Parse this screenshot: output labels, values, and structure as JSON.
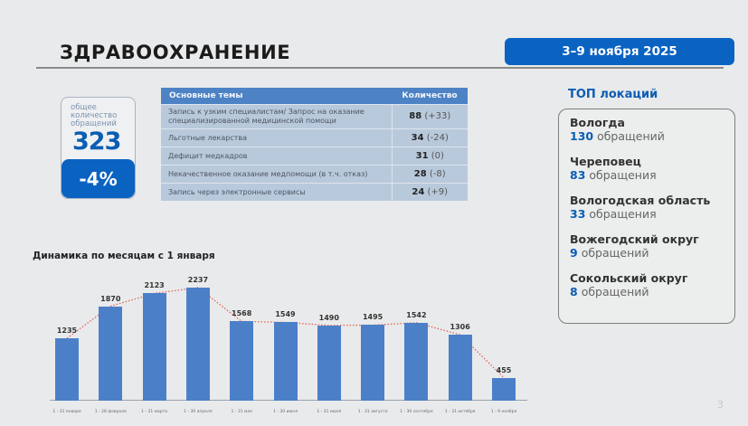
{
  "header": {
    "title": "ЗДРАВООХРАНЕНИЕ",
    "period": "3–9 ноября 2025"
  },
  "total": {
    "label_lines": [
      "общее",
      "количество",
      "обращений"
    ],
    "value": "323",
    "change": "-4%"
  },
  "topics_table": {
    "headers": [
      "Основные темы",
      "Количество"
    ],
    "rows": [
      {
        "topic_line1": "Запись к узким специалистам/ Запрос на оказание",
        "topic_line2": "специализированной медицинской помощи",
        "count": "88",
        "delta": "(+33)"
      },
      {
        "topic_line1": "Льготные лекарства",
        "topic_line2": "",
        "count": "34",
        "delta": "(-24)"
      },
      {
        "topic_line1": "Дефицит медкадров",
        "topic_line2": "",
        "count": "31",
        "delta": "(0)"
      },
      {
        "topic_line1": "Некачественное оказание медпомощи (в т.ч. отказ)",
        "topic_line2": "",
        "count": "28",
        "delta": "(-8)"
      },
      {
        "topic_line1": "Запись через электронные сервисы",
        "topic_line2": "",
        "count": "24",
        "delta": "(+9)"
      }
    ]
  },
  "top_locations": {
    "title": "ТОП локаций",
    "items": [
      {
        "name": "Вологда",
        "count": "130",
        "unit": "обращений"
      },
      {
        "name": "Череповец",
        "count": "83",
        "unit": "обращения"
      },
      {
        "name": "Вологодская область",
        "count": "33",
        "unit": "обращения"
      },
      {
        "name": "Вожегодский округ",
        "count": "9",
        "unit": "обращений"
      },
      {
        "name": "Сокольский округ",
        "count": "8",
        "unit": "обращений"
      }
    ]
  },
  "chart_data": {
    "type": "bar",
    "title": "Динамика по месяцам с 1 января",
    "categories": [
      "1 - 31 января",
      "1 - 28 февраля",
      "1 - 31 марта",
      "1 - 30 апреля",
      "1 - 31 мая",
      "1 - 30 июня",
      "1 - 31 июля",
      "1 - 31 августа",
      "1 - 30 сентября",
      "1 - 31 октября",
      "1 - 9 ноября"
    ],
    "values": [
      1235,
      1870,
      2123,
      2237,
      1568,
      1549,
      1490,
      1495,
      1542,
      1306,
      455
    ],
    "xlabel": "",
    "ylabel": "",
    "trendline": "dotted red line connecting bar tops",
    "colors": {
      "bar": "#4b80c9",
      "trend": "#e0645a"
    },
    "grid": false,
    "legend": "none"
  },
  "page_number": "3"
}
